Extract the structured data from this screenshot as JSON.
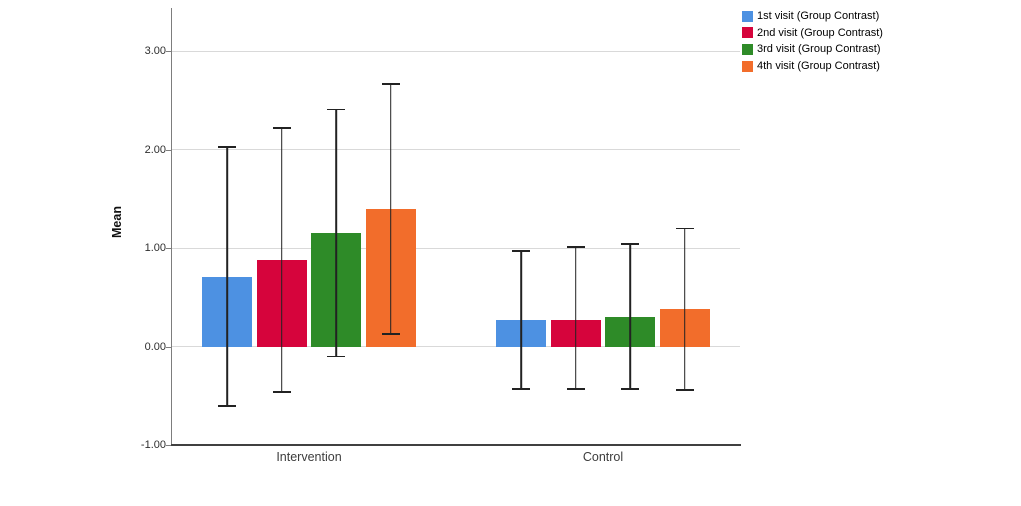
{
  "chart_data": {
    "type": "bar",
    "title": "",
    "xlabel": "",
    "ylabel": "Mean",
    "categories": [
      "Intervention",
      "Control"
    ],
    "series": [
      {
        "name": "1st visit (Group Contrast)",
        "color": "#4D91E2",
        "values": [
          0.71,
          0.27
        ],
        "error_high": [
          2.04,
          0.98
        ],
        "error_low": [
          -0.61,
          -0.44
        ]
      },
      {
        "name": "2nd visit (Group Contrast)",
        "color": "#D6043C",
        "values": [
          0.88,
          0.27
        ],
        "error_high": [
          2.23,
          1.02
        ],
        "error_low": [
          -0.47,
          -0.44
        ]
      },
      {
        "name": "3rd visit (Group Contrast)",
        "color": "#2E8B28",
        "values": [
          1.15,
          0.3
        ],
        "error_high": [
          2.42,
          1.05
        ],
        "error_low": [
          -0.11,
          -0.44
        ]
      },
      {
        "name": "4th visit (Group Contrast)",
        "color": "#F26D2B",
        "values": [
          1.4,
          0.38
        ],
        "error_high": [
          2.68,
          1.21
        ],
        "error_low": [
          0.12,
          -0.45
        ]
      }
    ],
    "ylim": [
      -1.0,
      3.442
    ],
    "yticks": [
      {
        "value": -1.0,
        "label": "-1.00"
      },
      {
        "value": 0.0,
        "label": "0.00"
      },
      {
        "value": 1.0,
        "label": "1.00"
      },
      {
        "value": 2.0,
        "label": "2.00"
      },
      {
        "value": 3.0,
        "label": "3.00"
      }
    ],
    "grid": true,
    "legend_position": "top-right",
    "error_bar_color": "#222222",
    "gridline_color": "#d9d9d9",
    "background_color": "#ffffff"
  }
}
